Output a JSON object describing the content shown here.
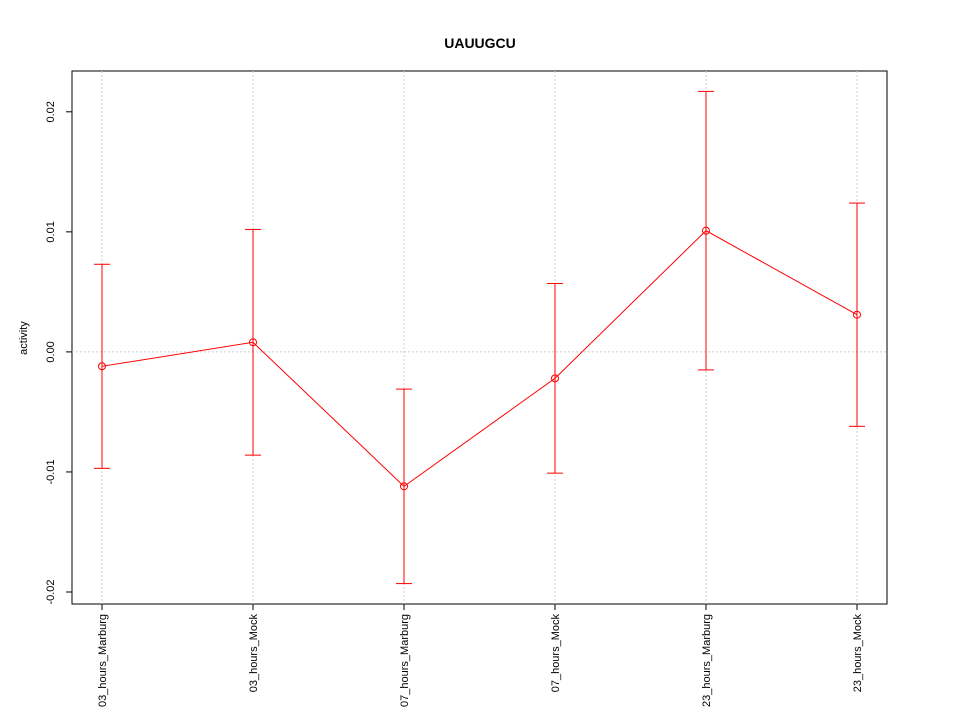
{
  "chart_data": {
    "type": "line",
    "title": "UAUUGCU",
    "y_label": "activity",
    "categories": [
      "03_hours_Marburg",
      "03_hours_Mock",
      "07_hours_Marburg",
      "07_hours_Mock",
      "23_hours_Marburg",
      "23_hours_Mock"
    ],
    "series": [
      {
        "color": "#ff0000",
        "values": [
          -0.0012,
          0.0008,
          -0.0112,
          -0.0022,
          0.0101,
          0.0031
        ],
        "errors": [
          0.0085,
          0.0094,
          0.0081,
          0.0079,
          0.0116,
          0.0093
        ]
      }
    ],
    "ylim": [
      -0.021,
      0.0234
    ],
    "yticks": [
      -0.02,
      -0.01,
      {
        "value": 0,
        "label": "0.00"
      },
      0.01,
      0.02
    ],
    "grid": "x",
    "hline": 0
  }
}
